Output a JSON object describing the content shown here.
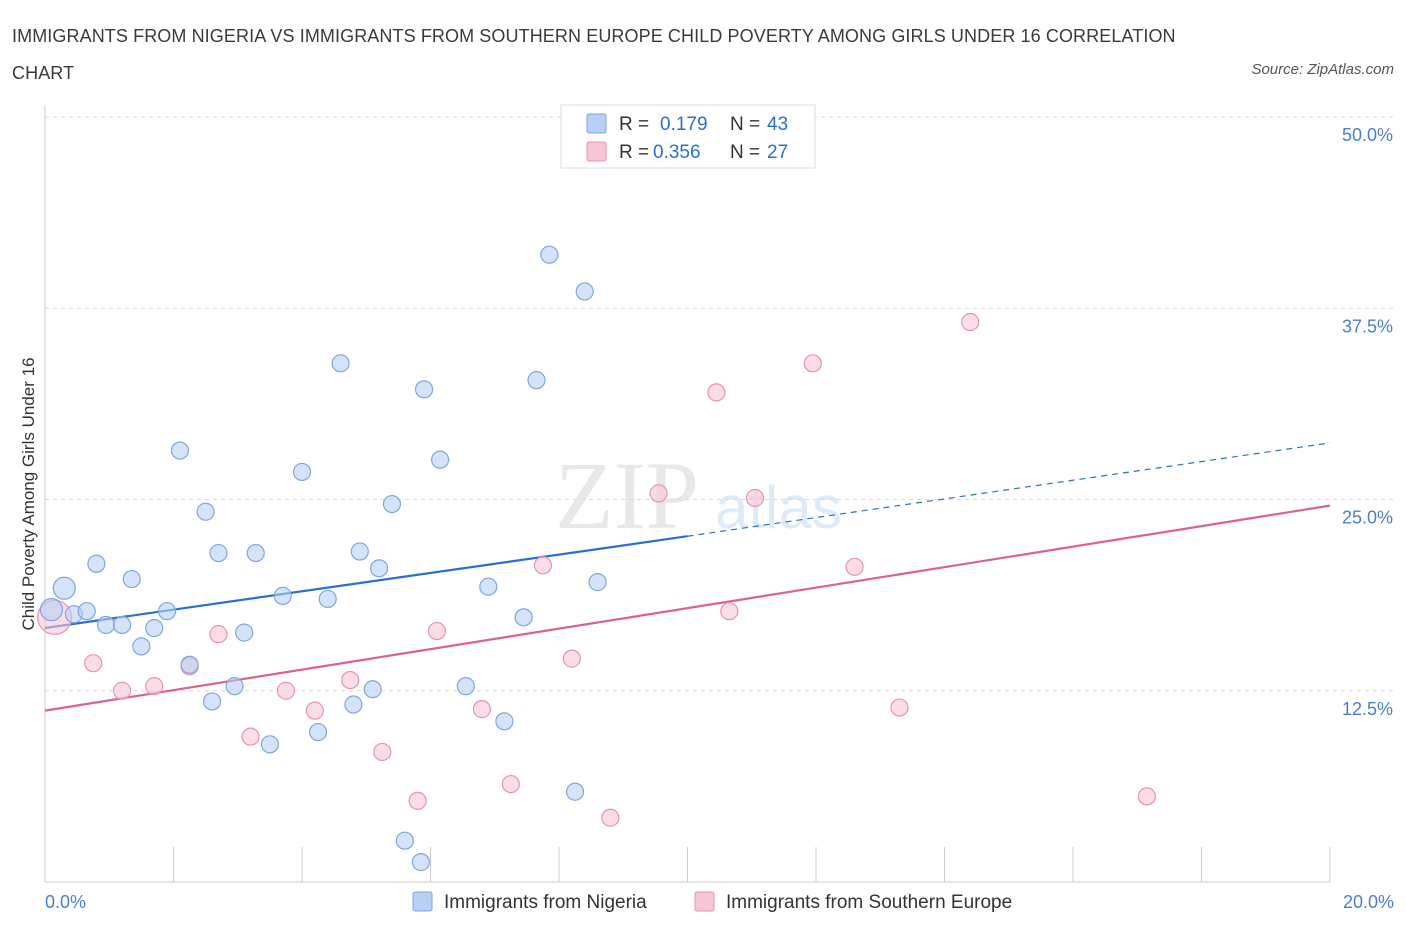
{
  "title": "IMMIGRANTS FROM NIGERIA VS IMMIGRANTS FROM SOUTHERN EUROPE CHILD POVERTY AMONG GIRLS UNDER 16 CORRELATION CHART",
  "source": "Source: ZipAtlas.com",
  "watermark": {
    "zip": "ZIP",
    "atlas": "atlas"
  },
  "colors": {
    "blue_fill": "#b8d0f4",
    "blue_stroke": "#7fa6e0",
    "blue_line": "#2a6fd0",
    "pink_fill": "#f7c6d6",
    "pink_stroke": "#e893b0",
    "pink_line": "#e0608c",
    "tick_text": "#4a7fd0",
    "grid": "#d8d8d8"
  },
  "legend": {
    "rows": [
      {
        "r_label": "R =",
        "r_value": "0.179",
        "n_label": "N =",
        "n_value": "43"
      },
      {
        "r_label": "R =",
        "r_value": "0.356",
        "n_label": "N =",
        "n_value": "27"
      }
    ]
  },
  "chart_data": {
    "type": "scatter",
    "title": "IMMIGRANTS FROM NIGERIA VS IMMIGRANTS FROM SOUTHERN EUROPE CHILD POVERTY AMONG GIRLS UNDER 16 CORRELATION CHART",
    "xlabel": "",
    "ylabel": "Child Poverty Among Girls Under 16",
    "xlim": [
      0,
      20
    ],
    "ylim": [
      0,
      50
    ],
    "x_tick_labels": [
      "0.0%",
      "20.0%"
    ],
    "y_tick_labels": [
      "50.0%",
      "37.5%",
      "25.0%",
      "12.5%"
    ],
    "y_ticks": [
      50,
      37.5,
      25,
      12.5
    ],
    "grid": true,
    "legend_position": "bottom",
    "series": [
      {
        "name": "Immigrants from Nigeria",
        "color": "#b8d0f4",
        "r": 0.179,
        "n": 43,
        "trend": {
          "x0": 0,
          "y0": 16.6,
          "x1": 10,
          "y1": 22.6,
          "dash_x1": 20,
          "dash_y1": 28.7
        },
        "points": [
          [
            0.1,
            17.8
          ],
          [
            0.3,
            19.2
          ],
          [
            0.45,
            17.5
          ],
          [
            0.65,
            17.7
          ],
          [
            0.8,
            20.8
          ],
          [
            0.95,
            16.8
          ],
          [
            1.2,
            16.8
          ],
          [
            1.35,
            19.8
          ],
          [
            1.5,
            15.4
          ],
          [
            1.7,
            16.6
          ],
          [
            1.9,
            17.7
          ],
          [
            2.1,
            28.2
          ],
          [
            2.25,
            14.2
          ],
          [
            2.5,
            24.2
          ],
          [
            2.6,
            11.8
          ],
          [
            2.7,
            21.5
          ],
          [
            2.95,
            12.8
          ],
          [
            3.1,
            16.3
          ],
          [
            3.28,
            21.5
          ],
          [
            3.5,
            9.0
          ],
          [
            3.7,
            18.7
          ],
          [
            4.0,
            26.8
          ],
          [
            4.25,
            9.8
          ],
          [
            4.4,
            18.5
          ],
          [
            4.6,
            33.9
          ],
          [
            4.8,
            11.6
          ],
          [
            4.9,
            21.6
          ],
          [
            5.1,
            12.6
          ],
          [
            5.2,
            20.5
          ],
          [
            5.4,
            24.7
          ],
          [
            5.6,
            2.7
          ],
          [
            5.85,
            1.3
          ],
          [
            5.9,
            32.2
          ],
          [
            6.15,
            27.6
          ],
          [
            6.55,
            12.8
          ],
          [
            6.9,
            19.3
          ],
          [
            7.15,
            10.5
          ],
          [
            7.45,
            17.3
          ],
          [
            7.65,
            32.8
          ],
          [
            7.85,
            41.0
          ],
          [
            8.25,
            5.9
          ],
          [
            8.4,
            38.6
          ],
          [
            8.6,
            19.6
          ]
        ]
      },
      {
        "name": "Immigrants from Southern Europe",
        "color": "#f7c6d6",
        "r": 0.356,
        "n": 27,
        "trend": {
          "x0": 0,
          "y0": 11.2,
          "x1": 20,
          "y1": 24.6
        },
        "points": [
          [
            0.15,
            17.3
          ],
          [
            0.75,
            14.3
          ],
          [
            1.2,
            12.5
          ],
          [
            1.7,
            12.8
          ],
          [
            2.25,
            14.1
          ],
          [
            2.7,
            16.2
          ],
          [
            3.2,
            9.5
          ],
          [
            3.75,
            12.5
          ],
          [
            4.2,
            11.2
          ],
          [
            4.75,
            13.2
          ],
          [
            5.25,
            8.5
          ],
          [
            5.8,
            5.3
          ],
          [
            6.1,
            16.4
          ],
          [
            6.8,
            11.3
          ],
          [
            7.25,
            6.4
          ],
          [
            7.75,
            20.7
          ],
          [
            8.2,
            14.6
          ],
          [
            8.8,
            4.2
          ],
          [
            9.55,
            25.4
          ],
          [
            10.45,
            32.0
          ],
          [
            10.65,
            17.7
          ],
          [
            11.05,
            25.1
          ],
          [
            11.95,
            33.9
          ],
          [
            12.6,
            20.6
          ],
          [
            13.3,
            11.4
          ],
          [
            14.4,
            36.6
          ],
          [
            17.15,
            5.6
          ]
        ]
      }
    ]
  }
}
